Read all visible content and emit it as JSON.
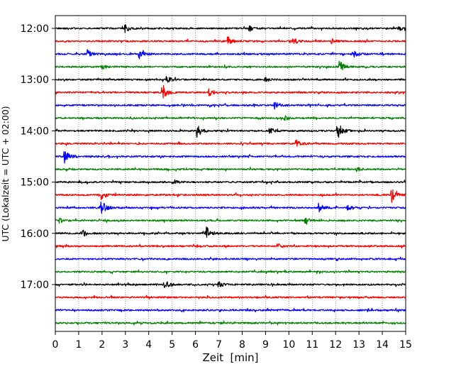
{
  "chart_data": {
    "type": "line",
    "title": "",
    "xlabel": "Zeit  [min]",
    "ylabel": "UTC (Lokalzeit = UTC + 02:00)",
    "xlim": [
      0,
      15
    ],
    "x_ticks": [
      "0",
      "1",
      "2",
      "3",
      "4",
      "5",
      "6",
      "7",
      "8",
      "9",
      "10",
      "11",
      "12",
      "13",
      "14",
      "15"
    ],
    "y_ticks": [
      "12:00",
      "13:00",
      "14:00",
      "15:00",
      "16:00",
      "17:00"
    ],
    "grid": "vertical dotted at each minute",
    "trace_interval_min": 15,
    "start_time": "12:00",
    "colors": [
      "#000000",
      "#ff0000",
      "#0000ff",
      "#008000"
    ],
    "traces": [
      {
        "start": "12:00",
        "color": "#000000",
        "events": [
          {
            "t": 3.0,
            "amp": 5
          },
          {
            "t": 8.3,
            "amp": 4
          },
          {
            "t": 14.7,
            "amp": 4
          }
        ]
      },
      {
        "start": "12:15",
        "color": "#ff0000",
        "events": [
          {
            "t": 7.4,
            "amp": 6
          },
          {
            "t": 10.2,
            "amp": 4
          },
          {
            "t": 11.8,
            "amp": 4
          }
        ]
      },
      {
        "start": "12:30",
        "color": "#0000ff",
        "events": [
          {
            "t": 1.4,
            "amp": 5
          },
          {
            "t": 3.6,
            "amp": 6
          },
          {
            "t": 12.8,
            "amp": 5
          }
        ]
      },
      {
        "start": "12:45",
        "color": "#008000",
        "events": [
          {
            "t": 12.2,
            "amp": 7
          },
          {
            "t": 2.0,
            "amp": 3
          }
        ]
      },
      {
        "start": "13:00",
        "color": "#000000",
        "events": [
          {
            "t": 4.8,
            "amp": 4
          },
          {
            "t": 9.0,
            "amp": 3
          }
        ]
      },
      {
        "start": "13:15",
        "color": "#ff0000",
        "events": [
          {
            "t": 4.6,
            "amp": 9
          },
          {
            "t": 6.6,
            "amp": 5
          }
        ]
      },
      {
        "start": "13:30",
        "color": "#0000ff",
        "events": [
          {
            "t": 9.4,
            "amp": 5
          }
        ]
      },
      {
        "start": "13:45",
        "color": "#008000",
        "events": [
          {
            "t": 9.8,
            "amp": 3
          }
        ]
      },
      {
        "start": "14:00",
        "color": "#000000",
        "events": [
          {
            "t": 6.1,
            "amp": 9
          },
          {
            "t": 9.2,
            "amp": 4
          },
          {
            "t": 12.1,
            "amp": 12
          }
        ]
      },
      {
        "start": "14:15",
        "color": "#ff0000",
        "events": [
          {
            "t": 10.3,
            "amp": 7
          }
        ]
      },
      {
        "start": "14:30",
        "color": "#0000ff",
        "events": [
          {
            "t": 0.4,
            "amp": 10
          }
        ]
      },
      {
        "start": "14:45",
        "color": "#008000",
        "events": [
          {
            "t": 12.9,
            "amp": 3
          }
        ]
      },
      {
        "start": "15:00",
        "color": "#000000",
        "events": [
          {
            "t": 5.1,
            "amp": 3
          }
        ]
      },
      {
        "start": "15:15",
        "color": "#ff0000",
        "events": [
          {
            "t": 2.0,
            "amp": 6
          },
          {
            "t": 14.4,
            "amp": 10
          }
        ]
      },
      {
        "start": "15:30",
        "color": "#0000ff",
        "events": [
          {
            "t": 2.0,
            "amp": 9
          },
          {
            "t": 11.3,
            "amp": 6
          },
          {
            "t": 12.5,
            "amp": 3
          }
        ]
      },
      {
        "start": "15:45",
        "color": "#008000",
        "events": [
          {
            "t": 0.2,
            "amp": 3
          },
          {
            "t": 10.7,
            "amp": 4
          }
        ]
      },
      {
        "start": "16:00",
        "color": "#000000",
        "events": [
          {
            "t": 1.2,
            "amp": 4
          },
          {
            "t": 6.5,
            "amp": 8
          }
        ]
      },
      {
        "start": "16:15",
        "color": "#ff0000",
        "events": [
          {
            "t": 9.5,
            "amp": 4
          }
        ]
      },
      {
        "start": "16:30",
        "color": "#0000ff",
        "events": []
      },
      {
        "start": "16:45",
        "color": "#008000",
        "events": []
      },
      {
        "start": "17:00",
        "color": "#000000",
        "events": [
          {
            "t": 4.7,
            "amp": 4
          },
          {
            "t": 7.0,
            "amp": 4
          }
        ]
      },
      {
        "start": "17:15",
        "color": "#ff0000",
        "events": []
      },
      {
        "start": "17:30",
        "color": "#0000ff",
        "events": []
      },
      {
        "start": "17:45",
        "color": "#008000",
        "events": []
      }
    ]
  }
}
